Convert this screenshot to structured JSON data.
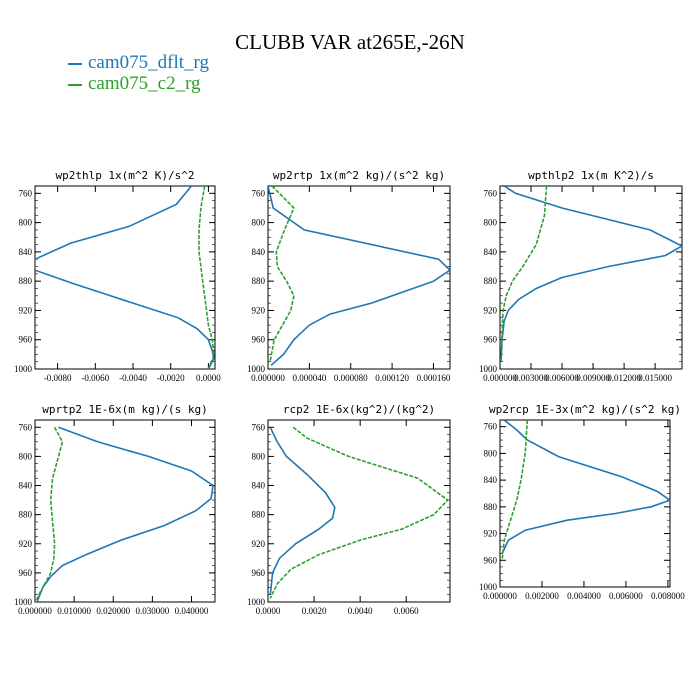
{
  "figure": {
    "title": "CLUBB VAR at265E,-26N"
  },
  "legend": [
    {
      "name": "cam075_dflt_rg",
      "color": "#1f77b4",
      "dashed": false
    },
    {
      "name": "cam075_c2_rg",
      "color": "#2ca02c",
      "dashed": true
    }
  ],
  "chart_data": [
    {
      "type": "line",
      "title": "wp2thlp   1x(m^2 K)/s^2",
      "xlim": [
        -0.0092,
        0.00035
      ],
      "ylim": [
        1000,
        750
      ],
      "yticks": [
        760,
        800,
        840,
        880,
        920,
        960,
        1000
      ],
      "xticks": [
        -0.008,
        -0.006,
        -0.004,
        -0.002,
        0.0
      ],
      "xticklabels": [
        "-0.0080",
        "-0.0060",
        "-0.0040",
        "-0.0020",
        "0.0000"
      ],
      "series": [
        {
          "name": "cam075_dflt_rg",
          "x": [
            -0.0009,
            -0.0017,
            -0.0042,
            -0.0073,
            -0.0092,
            -0.0092,
            -0.0072,
            -0.0052,
            -0.0034,
            -0.0016,
            -0.0006,
            0.0,
            0.0002,
            0.0003,
            0.0
          ],
          "y": [
            750,
            775,
            805,
            828,
            850,
            865,
            883,
            900,
            915,
            930,
            945,
            960,
            975,
            985,
            1000
          ]
        },
        {
          "name": "cam075_c2_rg",
          "x": [
            -0.0002,
            -0.0004,
            -0.0005,
            -0.0005,
            -0.0004,
            -0.0003,
            -0.0002,
            -0.0001,
            0.0,
            0.0002,
            0.0003,
            0.0
          ],
          "y": [
            750,
            780,
            810,
            840,
            860,
            880,
            900,
            920,
            940,
            960,
            980,
            1000
          ]
        }
      ]
    },
    {
      "type": "line",
      "title": "wp2rtp   1x(m^2 kg)/(s^2 kg)",
      "xlim": [
        0,
        0.000176
      ],
      "ylim": [
        1000,
        750
      ],
      "yticks": [
        760,
        800,
        840,
        880,
        920,
        960,
        1000
      ],
      "xticks": [
        0,
        4e-05,
        8e-05,
        0.00012,
        0.00016
      ],
      "xticklabels": [
        "0.000000",
        "0.000040",
        "0.000080",
        "0.000120",
        "0.000160"
      ],
      "series": [
        {
          "name": "cam075_dflt_rg",
          "x": [
            0.0,
            5e-06,
            3.5e-05,
            0.000165,
            0.000176,
            0.00016,
            0.0001,
            6e-05,
            4e-05,
            2.5e-05,
            1.5e-05,
            3e-06
          ],
          "y": [
            750,
            780,
            810,
            850,
            865,
            880,
            910,
            925,
            940,
            960,
            980,
            995
          ]
        },
        {
          "name": "cam075_c2_rg",
          "x": [
            4e-06,
            2.5e-05,
            1.6e-05,
            8e-06,
            9e-06,
            1.8e-05,
            2.5e-05,
            2.2e-05,
            1.4e-05,
            6e-06,
            2e-06
          ],
          "y": [
            750,
            780,
            810,
            840,
            860,
            880,
            900,
            920,
            940,
            960,
            990
          ]
        }
      ]
    },
    {
      "type": "line",
      "title": "wpthlp2   1x(m K^2)/s",
      "xlim": [
        0,
        0.0176
      ],
      "ylim": [
        1000,
        750
      ],
      "yticks": [
        760,
        800,
        840,
        880,
        920,
        960,
        1000
      ],
      "xticks": [
        0,
        0.003,
        0.006,
        0.009,
        0.012,
        0.015
      ],
      "xticklabels": [
        "0.000000",
        "0.003000",
        "0.006000",
        "0.009000",
        "0.012000",
        "0.015000"
      ],
      "series": [
        {
          "name": "cam075_dflt_rg",
          "x": [
            0.0004,
            0.0015,
            0.006,
            0.0145,
            0.0176,
            0.016,
            0.0105,
            0.006,
            0.0035,
            0.0018,
            0.0008,
            0.0004,
            0.0002,
            0.0001
          ],
          "y": [
            750,
            760,
            780,
            810,
            832,
            845,
            860,
            875,
            890,
            905,
            920,
            935,
            960,
            990
          ]
        },
        {
          "name": "cam075_c2_rg",
          "x": [
            0.0045,
            0.0043,
            0.0035,
            0.0022,
            0.0012,
            0.0006,
            0.0003,
            0.0002,
            0.0001
          ],
          "y": [
            750,
            790,
            830,
            860,
            880,
            900,
            920,
            950,
            990
          ]
        }
      ]
    },
    {
      "type": "line",
      "title": "wprtp2   1E-6x(m kg)/(s kg)",
      "xlim": [
        0,
        0.046
      ],
      "ylim": [
        1000,
        750
      ],
      "yticks": [
        760,
        800,
        840,
        880,
        920,
        960,
        1000
      ],
      "xticks": [
        0,
        0.01,
        0.02,
        0.03,
        0.04
      ],
      "xticklabels": [
        "0.000000",
        "0.010000",
        "0.020000",
        "0.030000",
        "0.040000"
      ],
      "series": [
        {
          "name": "cam075_dflt_rg",
          "x": [
            0.006,
            0.016,
            0.029,
            0.04,
            0.0455,
            0.045,
            0.041,
            0.033,
            0.022,
            0.013,
            0.007,
            0.004,
            0.002,
            0.0005
          ],
          "y": [
            760,
            780,
            800,
            820,
            840,
            858,
            875,
            895,
            915,
            935,
            950,
            965,
            980,
            1000
          ]
        },
        {
          "name": "cam075_c2_rg",
          "x": [
            0.005,
            0.007,
            0.006,
            0.0045,
            0.004,
            0.0045,
            0.005,
            0.0048,
            0.004,
            0.0025,
            0.001,
            0.0002
          ],
          "y": [
            760,
            780,
            800,
            830,
            860,
            890,
            920,
            940,
            960,
            975,
            990,
            1000
          ]
        }
      ]
    },
    {
      "type": "line",
      "title": "rcp2   1E-6x(kg^2)/(kg^2)",
      "xlim": [
        0,
        0.0079
      ],
      "ylim": [
        1000,
        750
      ],
      "yticks": [
        760,
        800,
        840,
        880,
        920,
        960,
        1000
      ],
      "xticks": [
        0,
        0.002,
        0.004,
        0.006
      ],
      "xticklabels": [
        "0.0000",
        "0.0020",
        "0.0040",
        "0.0060"
      ],
      "series": [
        {
          "name": "cam075_dflt_rg",
          "x": [
            0.0001,
            0.0004,
            0.0008,
            0.0017,
            0.0025,
            0.0029,
            0.0028,
            0.0022,
            0.0012,
            0.0005,
            0.0002,
            0.0001
          ],
          "y": [
            760,
            780,
            800,
            825,
            850,
            870,
            885,
            900,
            920,
            940,
            960,
            990
          ]
        },
        {
          "name": "cam075_c2_rg",
          "x": [
            0.0011,
            0.0017,
            0.0035,
            0.0065,
            0.0078,
            0.0072,
            0.0058,
            0.004,
            0.0022,
            0.001,
            0.0004,
            0.0001
          ],
          "y": [
            760,
            775,
            800,
            830,
            860,
            880,
            900,
            915,
            935,
            955,
            975,
            995
          ]
        }
      ]
    },
    {
      "type": "line",
      "title": "wp2rcp   1E-3x(m^2 kg)/(s^2 kg)",
      "xlim": [
        0,
        0.0081
      ],
      "ylim": [
        1000,
        750
      ],
      "yticks": [
        760,
        800,
        840,
        880,
        920,
        960,
        1000
      ],
      "xticks": [
        0,
        0.002,
        0.004,
        0.006,
        0.008
      ],
      "xticklabels": [
        "0.000000",
        "0.002000",
        "0.004000",
        "0.006000",
        "0.008000"
      ],
      "series": [
        {
          "name": "cam075_dflt_rg",
          "x": [
            0.0002,
            0.0008,
            0.0013,
            0.0028,
            0.0058,
            0.0075,
            0.0081,
            0.0072,
            0.0055,
            0.0032,
            0.0012,
            0.0004,
            0.0001
          ],
          "y": [
            750,
            765,
            780,
            805,
            835,
            857,
            870,
            880,
            890,
            900,
            915,
            930,
            950
          ]
        },
        {
          "name": "cam075_c2_rg",
          "x": [
            0.0013,
            0.0012,
            0.001,
            0.0008,
            0.0005,
            0.0002,
            0.0001
          ],
          "y": [
            750,
            800,
            840,
            870,
            900,
            930,
            960
          ]
        }
      ]
    }
  ]
}
